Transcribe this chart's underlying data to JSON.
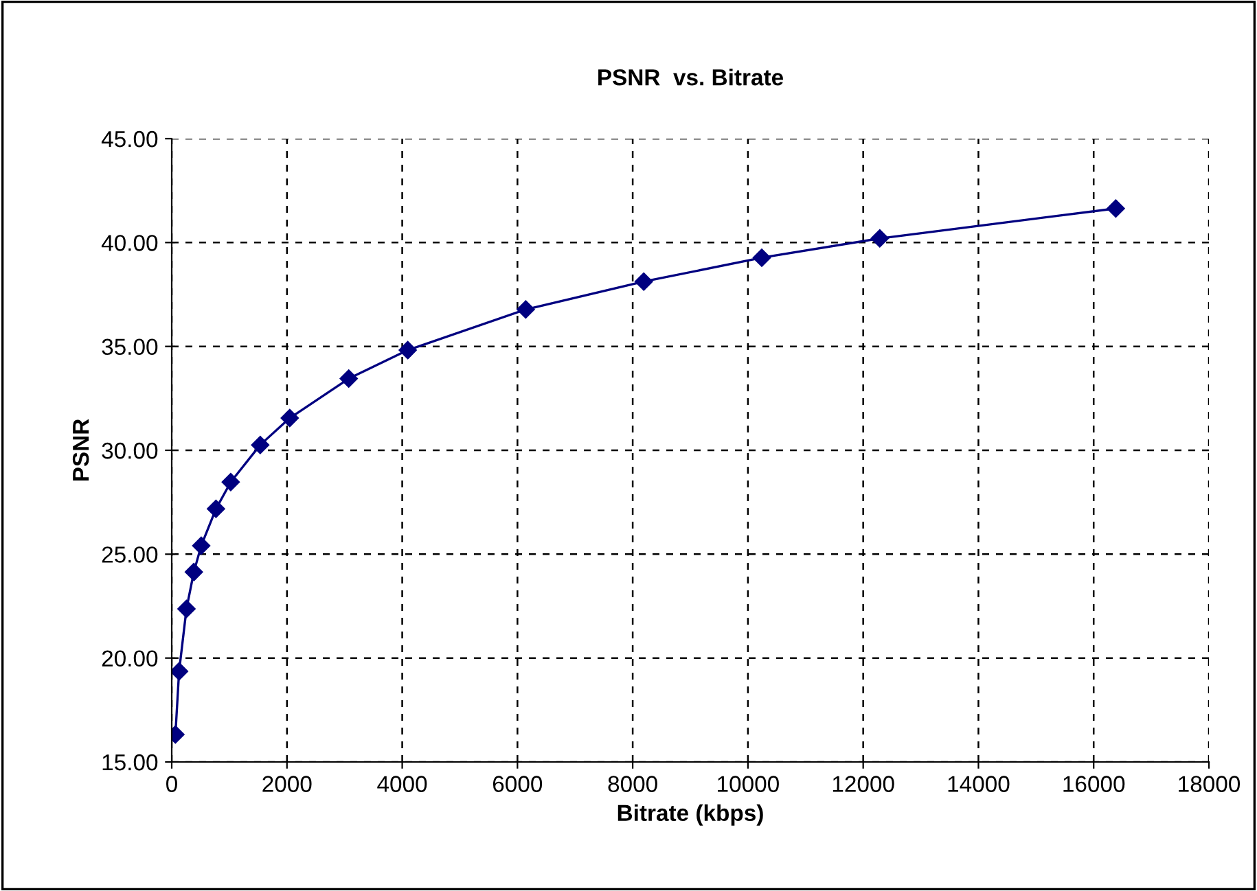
{
  "chart_data": {
    "type": "line",
    "title": "PSNR  vs. Bitrate",
    "xlabel": "Bitrate (kbps)",
    "ylabel": "PSNR",
    "x": [
      64,
      128,
      256,
      384,
      512,
      768,
      1024,
      1536,
      2048,
      3072,
      4096,
      6144,
      8192,
      10240,
      12288,
      16384
    ],
    "series": [
      {
        "color": "#000080",
        "values": [
          16.32,
          19.36,
          22.37,
          24.14,
          25.41,
          27.18,
          28.47,
          30.26,
          31.55,
          33.45,
          34.82,
          36.78,
          38.12,
          39.27,
          40.2,
          41.64
        ]
      }
    ],
    "xlim": [
      0,
      18000
    ],
    "xticks": [
      0,
      2000,
      4000,
      6000,
      8000,
      10000,
      12000,
      14000,
      16000,
      18000
    ],
    "ylim": [
      15,
      45
    ],
    "yticks": [
      {
        "value": 15,
        "label": "15.00"
      },
      {
        "value": 20,
        "label": "20.00"
      },
      {
        "value": 25,
        "label": "25.00"
      },
      {
        "value": 30,
        "label": "30.00"
      },
      {
        "value": 35,
        "label": "35.00"
      },
      {
        "value": 40,
        "label": "40.00"
      },
      {
        "value": 45,
        "label": "45.00"
      }
    ],
    "grid": true,
    "marker": "diamond",
    "line_style": "solid",
    "legend": false
  }
}
